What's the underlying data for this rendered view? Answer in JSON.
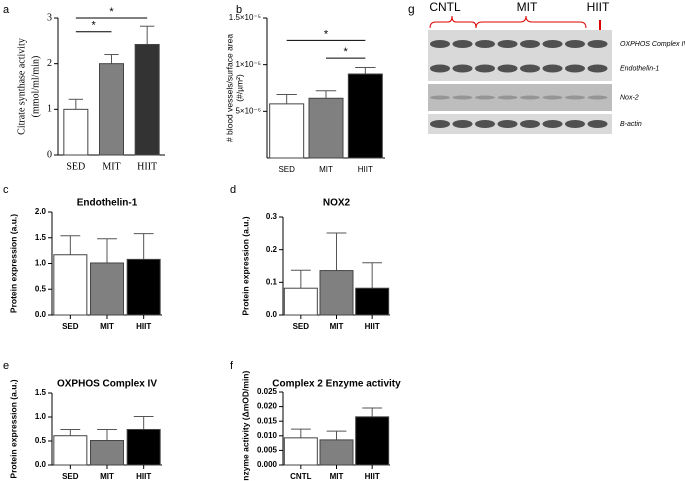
{
  "chart_data": [
    {
      "type": "bar",
      "label": "a",
      "ylabel": [
        "Citrate synthase activity",
        "(mmol/ml/min)"
      ],
      "categories": [
        "SED",
        "MIT",
        "HIIT"
      ],
      "values": [
        1.0,
        2.0,
        2.42
      ],
      "errors": [
        0.22,
        0.2,
        0.4
      ],
      "colors": [
        "#ffffff",
        "#808080",
        "#333333"
      ],
      "ylim": [
        0,
        3
      ],
      "yticks": [
        0,
        1,
        2,
        3
      ],
      "brackets": [
        {
          "text": "*",
          "between": [
            0,
            1
          ],
          "y": 2.7
        },
        {
          "text": "*",
          "between": [
            0,
            2
          ],
          "y": 3.0
        }
      ]
    },
    {
      "type": "bar",
      "label": "b",
      "ylabel": [
        "# blood vessels/surface area",
        "(#/µm²)"
      ],
      "categories": [
        "SED",
        "MIT",
        "HIIT"
      ],
      "values": [
        5.8e-06,
        6.4e-06,
        9e-06
      ],
      "errors": [
        1e-06,
        8e-07,
        7e-07
      ],
      "colors": [
        "#ffffff",
        "#808080",
        "#000000"
      ],
      "ylim": [
        0,
        1.5e-05
      ],
      "yticks": [
        {
          "value": 5e-06,
          "label": "5×10⁻⁶"
        },
        {
          "value": 1e-05,
          "label": "1×10⁻⁵"
        },
        {
          "value": 1.5e-05,
          "label": "1.5×10⁻⁵"
        }
      ],
      "brackets": [
        {
          "text": "*",
          "between": [
            0,
            2
          ],
          "y": 1.26e-05
        },
        {
          "text": "*",
          "between": [
            1,
            2
          ],
          "y": 1.07e-05
        }
      ]
    },
    {
      "type": "bar",
      "label": "c",
      "title": "Endothelin-1",
      "ylabel": "Protein expression (a.u.)",
      "categories": [
        "SED",
        "MIT",
        "HIIT"
      ],
      "values": [
        1.17,
        1.01,
        1.08
      ],
      "errors": [
        0.37,
        0.47,
        0.5
      ],
      "colors": [
        "#ffffff",
        "#808080",
        "#000000"
      ],
      "ylim": [
        0,
        2.0
      ],
      "yticks": [
        {
          "value": 0,
          "label": "0.0"
        },
        0.5,
        {
          "value": 1,
          "label": "1.0"
        },
        1.5,
        {
          "value": 2,
          "label": "2.0"
        }
      ]
    },
    {
      "type": "bar",
      "label": "d",
      "title": "NOX2",
      "ylabel": "Protein expression (a.u.)",
      "categories": [
        "SED",
        "MIT",
        "HIIT"
      ],
      "values": [
        0.082,
        0.136,
        0.082
      ],
      "errors": [
        0.055,
        0.115,
        0.078
      ],
      "colors": [
        "#ffffff",
        "#808080",
        "#000000"
      ],
      "ylim": [
        0,
        0.3
      ],
      "yticks": [
        {
          "value": 0,
          "label": "0.0"
        },
        0.1,
        0.2,
        0.3
      ]
    },
    {
      "type": "bar",
      "label": "e",
      "title": "OXPHOS Complex IV",
      "ylabel": "Protein expression (a.u.)",
      "categories": [
        "SED",
        "MIT",
        "HIIT"
      ],
      "values": [
        0.61,
        0.51,
        0.74
      ],
      "errors": [
        0.13,
        0.23,
        0.27
      ],
      "colors": [
        "#ffffff",
        "#808080",
        "#000000"
      ],
      "ylim": [
        0,
        1.5
      ],
      "yticks": [
        {
          "value": 0,
          "label": "0.0"
        },
        0.5,
        {
          "value": 1,
          "label": "1.0"
        },
        1.5
      ]
    },
    {
      "type": "bar",
      "label": "f",
      "title": "Complex 2 Enzyme activity",
      "ylabel": "Enzyme activity (ΔmOD/min)",
      "categories": [
        "CNTL",
        "MIT",
        "HIIT"
      ],
      "values": [
        0.0093,
        0.0086,
        0.0165
      ],
      "errors": [
        0.003,
        0.003,
        0.003
      ],
      "colors": [
        "#ffffff",
        "#808080",
        "#000000"
      ],
      "ylim": [
        0,
        0.025
      ],
      "yticks": [
        {
          "value": 0,
          "label": "0.000"
        },
        {
          "value": 0.005,
          "label": "0.005"
        },
        {
          "value": 0.01,
          "label": "0.010"
        },
        {
          "value": 0.015,
          "label": "0.015"
        },
        {
          "value": 0.02,
          "label": "0.020"
        },
        {
          "value": 0.025,
          "label": "0.025"
        }
      ]
    }
  ],
  "blot": {
    "label": "g",
    "groups": [
      "CNTL",
      "MIT",
      "HIIT"
    ],
    "bands": [
      "OXPHOS Complex IV",
      "Endothelin-1",
      "Nox-2",
      "B-actin"
    ]
  }
}
